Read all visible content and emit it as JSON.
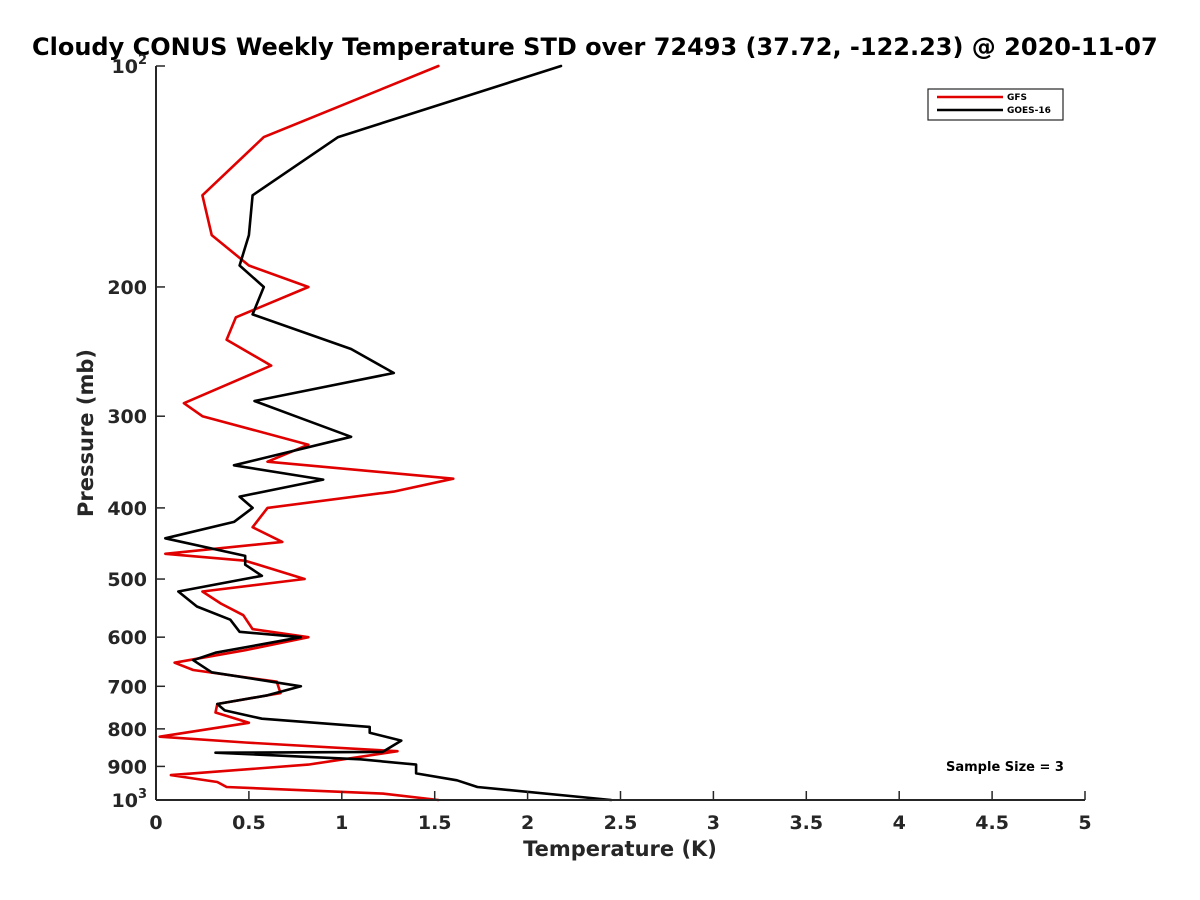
{
  "chart_data": {
    "type": "line",
    "title": "Cloudy CONUS Weekly Temperature STD over 72493 (37.72, -122.23) @ 2020-11-07",
    "xlabel": "Temperature (K)",
    "ylabel": "Pressure (mb)",
    "xlim": [
      0,
      5
    ],
    "ylim": [
      100,
      1000
    ],
    "yscale": "log",
    "y_reversed": true,
    "grid": false,
    "legend_position": "top-right",
    "xticks": [
      0,
      0.5,
      1,
      1.5,
      2,
      2.5,
      3,
      3.5,
      4,
      4.5,
      5
    ],
    "xtick_labels": [
      "0",
      "0.5",
      "1",
      "1.5",
      "2",
      "2.5",
      "3",
      "3.5",
      "4",
      "4.5",
      "5"
    ],
    "yticks": [
      100,
      200,
      300,
      400,
      500,
      600,
      700,
      800,
      900,
      1000
    ],
    "ytick_labels": [
      {
        "base": "10",
        "exp": "2"
      },
      {
        "base": "200",
        "exp": ""
      },
      {
        "base": "300",
        "exp": ""
      },
      {
        "base": "400",
        "exp": ""
      },
      {
        "base": "500",
        "exp": ""
      },
      {
        "base": "600",
        "exp": ""
      },
      {
        "base": "700",
        "exp": ""
      },
      {
        "base": "800",
        "exp": ""
      },
      {
        "base": "900",
        "exp": ""
      },
      {
        "base": "10",
        "exp": "3"
      }
    ],
    "annotation": "Sample Size = 3",
    "series": [
      {
        "name": "GFS",
        "color": "#e00000",
        "points": [
          [
            1.52,
            100
          ],
          [
            0.58,
            125
          ],
          [
            0.25,
            150
          ],
          [
            0.3,
            170
          ],
          [
            0.5,
            187
          ],
          [
            0.82,
            200
          ],
          [
            0.43,
            220
          ],
          [
            0.38,
            236
          ],
          [
            0.62,
            256
          ],
          [
            0.15,
            288
          ],
          [
            0.25,
            300
          ],
          [
            0.82,
            328
          ],
          [
            0.6,
            346
          ],
          [
            1.6,
            365
          ],
          [
            1.28,
            380
          ],
          [
            0.6,
            400
          ],
          [
            0.52,
            425
          ],
          [
            0.68,
            445
          ],
          [
            0.05,
            462
          ],
          [
            0.48,
            472
          ],
          [
            0.8,
            500
          ],
          [
            0.25,
            520
          ],
          [
            0.35,
            540
          ],
          [
            0.47,
            560
          ],
          [
            0.52,
            585
          ],
          [
            0.82,
            600
          ],
          [
            0.48,
            625
          ],
          [
            0.1,
            650
          ],
          [
            0.2,
            665
          ],
          [
            0.65,
            690
          ],
          [
            0.67,
            715
          ],
          [
            0.33,
            740
          ],
          [
            0.32,
            760
          ],
          [
            0.5,
            785
          ],
          [
            0.02,
            820
          ],
          [
            0.48,
            835
          ],
          [
            1.3,
            858
          ],
          [
            0.82,
            895
          ],
          [
            0.08,
            925
          ],
          [
            0.33,
            945
          ],
          [
            0.38,
            960
          ],
          [
            1.22,
            980
          ],
          [
            1.52,
            1000
          ]
        ]
      },
      {
        "name": "GOES-16",
        "color": "#000000",
        "points": [
          [
            2.18,
            100
          ],
          [
            0.98,
            125
          ],
          [
            0.52,
            150
          ],
          [
            0.5,
            170
          ],
          [
            0.45,
            187
          ],
          [
            0.58,
            200
          ],
          [
            0.52,
            218
          ],
          [
            1.05,
            243
          ],
          [
            1.28,
            262
          ],
          [
            0.53,
            286
          ],
          [
            0.75,
            300
          ],
          [
            1.05,
            320
          ],
          [
            0.42,
            350
          ],
          [
            0.9,
            366
          ],
          [
            0.45,
            386
          ],
          [
            0.52,
            400
          ],
          [
            0.42,
            418
          ],
          [
            0.05,
            440
          ],
          [
            0.48,
            465
          ],
          [
            0.48,
            478
          ],
          [
            0.57,
            495
          ],
          [
            0.12,
            520
          ],
          [
            0.22,
            545
          ],
          [
            0.4,
            568
          ],
          [
            0.45,
            590
          ],
          [
            0.78,
            600
          ],
          [
            0.32,
            630
          ],
          [
            0.2,
            645
          ],
          [
            0.3,
            670
          ],
          [
            0.78,
            700
          ],
          [
            0.6,
            720
          ],
          [
            0.33,
            740
          ],
          [
            0.37,
            755
          ],
          [
            0.57,
            775
          ],
          [
            1.15,
            795
          ],
          [
            1.15,
            810
          ],
          [
            1.32,
            830
          ],
          [
            1.22,
            860
          ],
          [
            0.32,
            862
          ],
          [
            1.1,
            880
          ],
          [
            1.4,
            895
          ],
          [
            1.4,
            920
          ],
          [
            1.62,
            940
          ],
          [
            1.73,
            960
          ],
          [
            2.45,
            1000
          ]
        ]
      }
    ]
  }
}
